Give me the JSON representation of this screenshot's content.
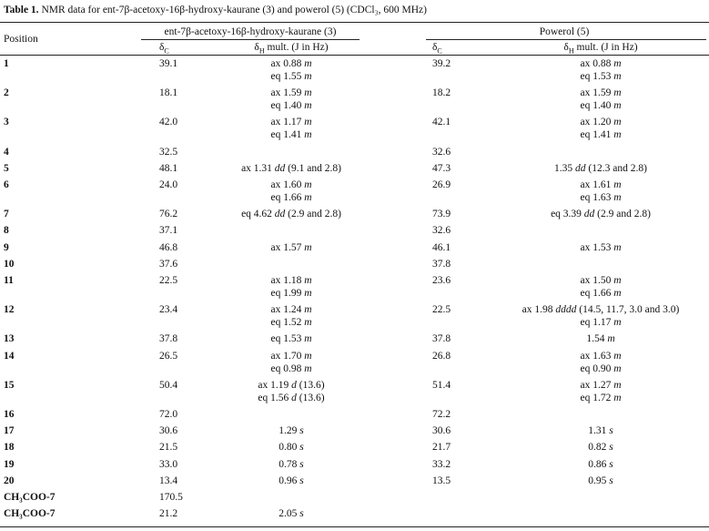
{
  "title": {
    "label": "Table 1.",
    "text": "NMR data for ent-7β-acetoxy-16β-hydroxy-kaurane (3) and powerol (5) (CDCl₃, 600 MHz)"
  },
  "header": {
    "position": "Position",
    "compounds": [
      "ent-7β-acetoxy-16β-hydroxy-kaurane (3)",
      "Powerol (5)"
    ],
    "carbon": {
      "symbol": "δ",
      "sub": "C"
    },
    "proton": {
      "symbol": "δ",
      "sub": "H",
      "rest": "mult. (J in Hz)"
    }
  },
  "rows": [
    {
      "position": "1",
      "c3": "39.1",
      "h3": [
        {
          "shift": "ax 0.88",
          "mult": "m"
        },
        {
          "shift": "eq 1.55",
          "mult": "m"
        }
      ],
      "c5": "39.2",
      "h5": [
        {
          "shift": "ax 0.88",
          "mult": "m"
        },
        {
          "shift": "eq 1.53",
          "mult": "m"
        }
      ]
    },
    {
      "position": "2",
      "c3": "18.1",
      "h3": [
        {
          "shift": "ax 1.59",
          "mult": "m"
        },
        {
          "shift": "eq 1.40",
          "mult": "m"
        }
      ],
      "c5": "18.2",
      "h5": [
        {
          "shift": "ax 1.59",
          "mult": "m"
        },
        {
          "shift": "eq 1.40",
          "mult": "m"
        }
      ]
    },
    {
      "position": "3",
      "c3": "42.0",
      "h3": [
        {
          "shift": "ax 1.17",
          "mult": "m"
        },
        {
          "shift": "eq 1.41",
          "mult": "m"
        }
      ],
      "c5": "42.1",
      "h5": [
        {
          "shift": "ax 1.20",
          "mult": "m"
        },
        {
          "shift": "eq 1.41",
          "mult": "m"
        }
      ]
    },
    {
      "position": "4",
      "c3": "32.5",
      "h3": [],
      "c5": "32.6",
      "h5": []
    },
    {
      "position": "5",
      "c3": "48.1",
      "h3": [
        {
          "shift": "ax 1.31",
          "mult": "dd",
          "j": "(9.1 and 2.8)"
        }
      ],
      "c5": "47.3",
      "h5": [
        {
          "shift": "1.35",
          "mult": "dd",
          "j": "(12.3 and 2.8)"
        }
      ]
    },
    {
      "position": "6",
      "c3": "24.0",
      "h3": [
        {
          "shift": "ax 1.60",
          "mult": "m"
        },
        {
          "shift": "eq 1.66",
          "mult": "m"
        }
      ],
      "c5": "26.9",
      "h5": [
        {
          "shift": "ax 1.61",
          "mult": "m"
        },
        {
          "shift": "eq 1.63",
          "mult": "m"
        }
      ]
    },
    {
      "position": "7",
      "c3": "76.2",
      "h3": [
        {
          "shift": "eq 4.62",
          "mult": "dd",
          "j": "(2.9 and 2.8)"
        }
      ],
      "c5": "73.9",
      "h5": [
        {
          "shift": "eq 3.39",
          "mult": "dd",
          "j": "(2.9 and 2.8)"
        }
      ]
    },
    {
      "position": "8",
      "c3": "37.1",
      "h3": [],
      "c5": "32.6",
      "h5": []
    },
    {
      "position": "9",
      "c3": "46.8",
      "h3": [
        {
          "shift": "ax 1.57",
          "mult": "m"
        }
      ],
      "c5": "46.1",
      "h5": [
        {
          "shift": "ax 1.53",
          "mult": "m"
        }
      ]
    },
    {
      "position": "10",
      "c3": "37.6",
      "h3": [],
      "c5": "37.8",
      "h5": []
    },
    {
      "position": "11",
      "c3": "22.5",
      "h3": [
        {
          "shift": "ax 1.18",
          "mult": "m"
        },
        {
          "shift": "eq 1.99",
          "mult": "m"
        }
      ],
      "c5": "23.6",
      "h5": [
        {
          "shift": "ax 1.50",
          "mult": "m"
        },
        {
          "shift": "eq 1.66",
          "mult": "m"
        }
      ]
    },
    {
      "position": "12",
      "c3": "23.4",
      "h3": [
        {
          "shift": "ax 1.24",
          "mult": "m"
        },
        {
          "shift": "eq 1.52",
          "mult": "m"
        }
      ],
      "c5": "22.5",
      "h5": [
        {
          "shift": "ax 1.98",
          "mult": "dddd",
          "j": "(14.5, 11.7, 3.0 and 3.0)"
        },
        {
          "shift": "eq 1.17",
          "mult": "m"
        }
      ]
    },
    {
      "position": "13",
      "c3": "37.8",
      "h3": [
        {
          "shift": "eq 1.53",
          "mult": "m"
        }
      ],
      "c5": "37.8",
      "h5": [
        {
          "shift": "1.54",
          "mult": "m"
        }
      ]
    },
    {
      "position": "14",
      "c3": "26.5",
      "h3": [
        {
          "shift": "ax 1.70",
          "mult": "m"
        },
        {
          "shift": "eq 0.98",
          "mult": "m"
        }
      ],
      "c5": "26.8",
      "h5": [
        {
          "shift": "ax 1.63",
          "mult": "m"
        },
        {
          "shift": "eq 0.90",
          "mult": "m"
        }
      ]
    },
    {
      "position": "15",
      "c3": "50.4",
      "h3": [
        {
          "shift": "ax 1.19",
          "mult": "d",
          "j": "(13.6)"
        },
        {
          "shift": "eq 1.56",
          "mult": "d",
          "j": "(13.6)"
        }
      ],
      "c5": "51.4",
      "h5": [
        {
          "shift": "ax 1.27",
          "mult": "m"
        },
        {
          "shift": "eq 1.72",
          "mult": "m"
        }
      ]
    },
    {
      "position": "16",
      "c3": "72.0",
      "h3": [],
      "c5": "72.2",
      "h5": []
    },
    {
      "position": "17",
      "c3": "30.6",
      "h3": [
        {
          "shift": "1.29",
          "mult": "s"
        }
      ],
      "c5": "30.6",
      "h5": [
        {
          "shift": "1.31",
          "mult": "s"
        }
      ]
    },
    {
      "position": "18",
      "c3": "21.5",
      "h3": [
        {
          "shift": "0.80",
          "mult": "s"
        }
      ],
      "c5": "21.7",
      "h5": [
        {
          "shift": "0.82",
          "mult": "s"
        }
      ]
    },
    {
      "position": "19",
      "c3": "33.0",
      "h3": [
        {
          "shift": "0.78",
          "mult": "s"
        }
      ],
      "c5": "33.2",
      "h5": [
        {
          "shift": "0.86",
          "mult": "s"
        }
      ]
    },
    {
      "position": "20",
      "c3": "13.4",
      "h3": [
        {
          "shift": "0.96",
          "mult": "s"
        }
      ],
      "c5": "13.5",
      "h5": [
        {
          "shift": "0.95",
          "mult": "s"
        }
      ]
    },
    {
      "position": "CH₃COO-7",
      "c3": "170.5",
      "h3": [],
      "c5": null,
      "h5": []
    },
    {
      "position": "CH₃COO-7",
      "c3": "21.2",
      "h3": [
        {
          "shift": "2.05",
          "mult": "s"
        }
      ],
      "c5": null,
      "h5": []
    }
  ]
}
